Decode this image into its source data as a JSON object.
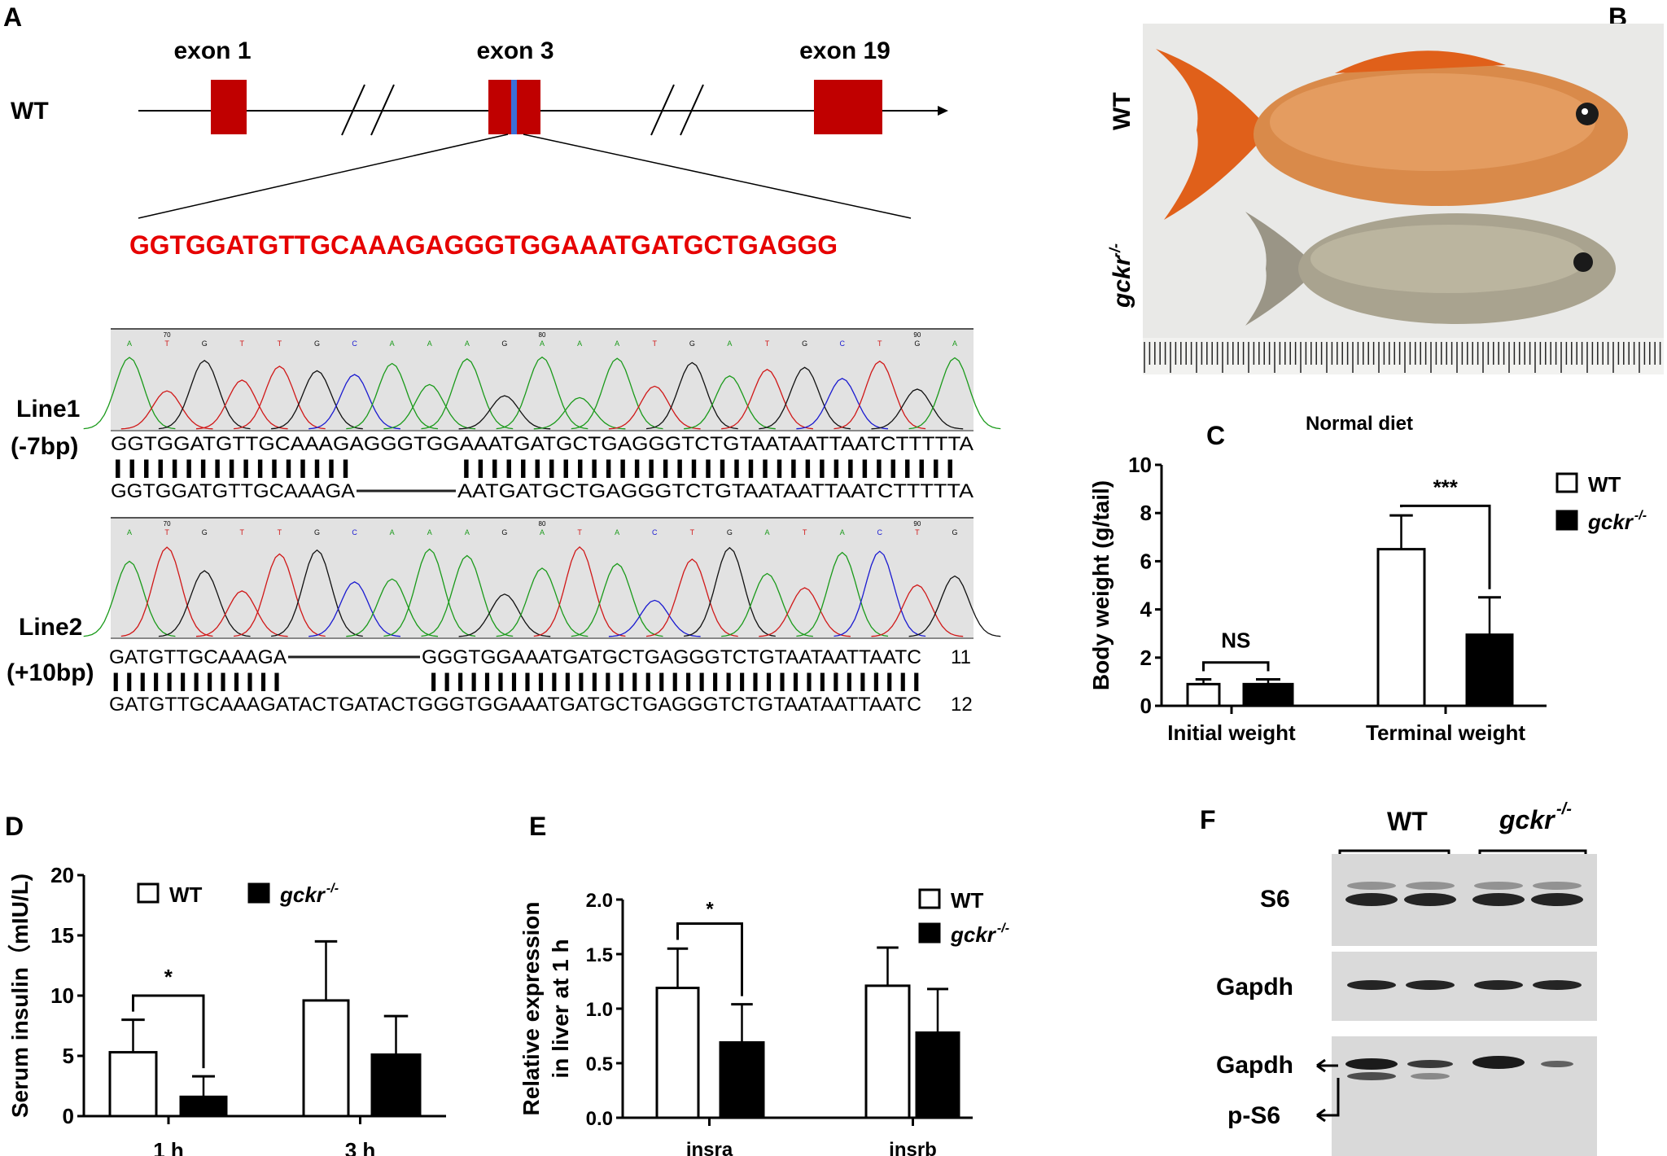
{
  "panel_labels": {
    "a": "A",
    "b": "B",
    "c": "C",
    "d": "D",
    "e": "E",
    "f": "F"
  },
  "panel_a": {
    "genotype": "WT",
    "exons": [
      "exon 1",
      "exon 3",
      "exon 19"
    ],
    "target_sequence": "GGTGGATGTTGCAAAGAGGGTGGAAATGATGCTGAGGG",
    "line1": {
      "label": "Line1",
      "mutation": "(-7bp)",
      "base_calls": [
        "A",
        "T",
        "G",
        "T",
        "T",
        "G",
        "C",
        "A",
        "A",
        "A",
        "G",
        "A",
        "A",
        "A",
        "T",
        "G",
        "A",
        "T",
        "G",
        "C",
        "T",
        "G",
        "A"
      ],
      "positions": [
        "70",
        "80",
        "90"
      ],
      "ref_seq": "GGTGGATGTTGCAAAGAGGGTGGAAATGATGCTGAGGGTCTGTAATAATTAATCTTTTTA",
      "match": "|||||||||||||||||       |||||||||||||||||||||||||||||||||||",
      "mut_seq_left": "GGTGGATGTTGCAAAGA",
      "mut_seq_right": "AATGATGCTGAGGGTCTGTAATAATTAATCTTTTTA"
    },
    "line2": {
      "label": "Line2",
      "mutation": "(+10bp)",
      "base_calls": [
        "A",
        "T",
        "G",
        "T",
        "T",
        "G",
        "C",
        "A",
        "A",
        "A",
        "G",
        "A",
        "T",
        "A",
        "C",
        "T",
        "G",
        "A",
        "T",
        "A",
        "C",
        "T",
        "G"
      ],
      "positions": [
        "70",
        "80",
        "90"
      ],
      "ref_seq_left": "GATGTTGCAAAGA",
      "ref_seq_right": "GGGTGGAAATGATGCTGAGGGTCTGTAATAATTAATC",
      "ref_num": "11",
      "match": "|||||||||||||          |||||||||||||||||||||||||||||||||||||",
      "mut_seq": "GATGTTGCAAAGATACTGATACTGGGTGGAAATGATGCTGAGGGTCTGTAATAATTAATC",
      "mut_num": "12"
    }
  },
  "panel_b": {
    "wt_label": "WT",
    "ko_label": "gckr",
    "ko_sup": "-/-"
  },
  "colors": {
    "exon": "#c00000",
    "cut_site": "#3a6fd8",
    "sequence": "#e60000",
    "A": "#1a9a1a",
    "T": "#d01818",
    "G": "#111111",
    "C": "#1a1ad0",
    "chromatogram_bg": "#e2e2e2"
  },
  "chart_data": [
    {
      "id": "C",
      "type": "bar",
      "title": "Normal diet",
      "ylabel": "Body weight (g/tail)",
      "xlabel": "",
      "ylim": [
        0,
        10
      ],
      "yticks": [
        "0",
        "2",
        "4",
        "6",
        "8",
        "10"
      ],
      "categories": [
        "Initial weight",
        "Terminal weight"
      ],
      "series": [
        {
          "name": "WT",
          "fill": "#ffffff",
          "values": [
            0.9,
            6.5
          ],
          "error": [
            0.2,
            1.4
          ]
        },
        {
          "name": "gckr-/-",
          "fill": "#000000",
          "values": [
            0.9,
            2.95
          ],
          "error": [
            0.2,
            1.55
          ]
        }
      ],
      "annotations": [
        "NS",
        "***"
      ],
      "legend": {
        "position": "right",
        "labels": [
          "WT",
          "gckr"
        ],
        "sup": "-/-"
      }
    },
    {
      "id": "D",
      "type": "bar",
      "title": "",
      "ylabel": "Serum insulin（mIU/L)",
      "xlabel": "",
      "ylim": [
        0,
        20
      ],
      "yticks": [
        "0",
        "5",
        "10",
        "15",
        "20"
      ],
      "categories": [
        "1 h",
        "3 h"
      ],
      "series": [
        {
          "name": "WT",
          "fill": "#ffffff",
          "values": [
            5.3,
            9.6
          ],
          "error": [
            2.7,
            4.9
          ]
        },
        {
          "name": "gckr-/-",
          "fill": "#000000",
          "values": [
            1.6,
            5.1
          ],
          "error": [
            1.7,
            3.2
          ]
        }
      ],
      "annotations": [
        "*"
      ],
      "legend": {
        "position": "top",
        "labels": [
          "WT",
          "gckr"
        ],
        "sup": "-/-"
      }
    },
    {
      "id": "E",
      "type": "bar",
      "title": "",
      "ylabel": "Relative expression",
      "ylabel2": "in liver at 1 h",
      "xlabel": "",
      "ylim": [
        0,
        2
      ],
      "yticks": [
        "0.0",
        "0.5",
        "1.0",
        "1.5",
        "2.0"
      ],
      "categories": [
        "insra",
        "insrb"
      ],
      "series": [
        {
          "name": "WT",
          "fill": "#ffffff",
          "values": [
            1.19,
            1.21
          ],
          "error": [
            0.36,
            0.35
          ]
        },
        {
          "name": "gckr-/-",
          "fill": "#000000",
          "values": [
            0.69,
            0.78
          ],
          "error": [
            0.35,
            0.4
          ]
        }
      ],
      "annotations": [
        "*"
      ],
      "legend": {
        "position": "top-right",
        "labels": [
          "WT",
          "gckr"
        ],
        "sup": "-/-"
      }
    }
  ],
  "panel_f": {
    "wt_label": "WT",
    "ko_label": "gckr",
    "ko_sup": "-/-",
    "rows": [
      "S6",
      "Gapdh",
      "Gapdh",
      "p-S6"
    ]
  }
}
